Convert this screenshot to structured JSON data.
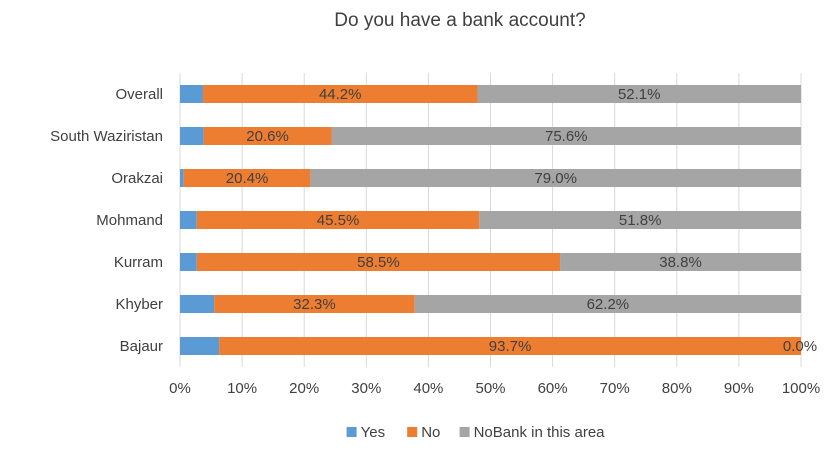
{
  "chart_data": {
    "type": "bar",
    "orientation": "horizontal",
    "stacked": true,
    "title": "Do you have a bank account?",
    "xlabel": "",
    "ylabel": "",
    "xlim": [
      0,
      100
    ],
    "x_ticks": [
      "0%",
      "10%",
      "20%",
      "30%",
      "40%",
      "50%",
      "60%",
      "70%",
      "80%",
      "90%",
      "100%"
    ],
    "categories": [
      "Overall",
      "South Waziristan",
      "Orakzai",
      "Mohmand",
      "Kurram",
      "Khyber",
      "Bajaur"
    ],
    "series": [
      {
        "name": "Yes",
        "color": "#5B9BD5",
        "values": [
          3.7,
          3.8,
          0.6,
          2.7,
          2.7,
          5.5,
          6.3
        ],
        "labels": [
          "",
          "",
          "",
          "",
          "",
          "",
          ""
        ]
      },
      {
        "name": "No",
        "color": "#ED7D31",
        "values": [
          44.2,
          20.6,
          20.4,
          45.5,
          58.5,
          32.3,
          93.7
        ],
        "labels": [
          "44.2%",
          "20.6%",
          "20.4%",
          "45.5%",
          "58.5%",
          "32.3%",
          "93.7%"
        ]
      },
      {
        "name": "NoBank in this area",
        "color": "#A5A5A5",
        "values": [
          52.1,
          75.6,
          79.0,
          51.8,
          38.8,
          62.2,
          0.0
        ],
        "labels": [
          "52.1%",
          "75.6%",
          "79.0%",
          "51.8%",
          "38.8%",
          "62.2%",
          "0.0%"
        ]
      }
    ],
    "grid": true,
    "legend_position": "bottom"
  }
}
